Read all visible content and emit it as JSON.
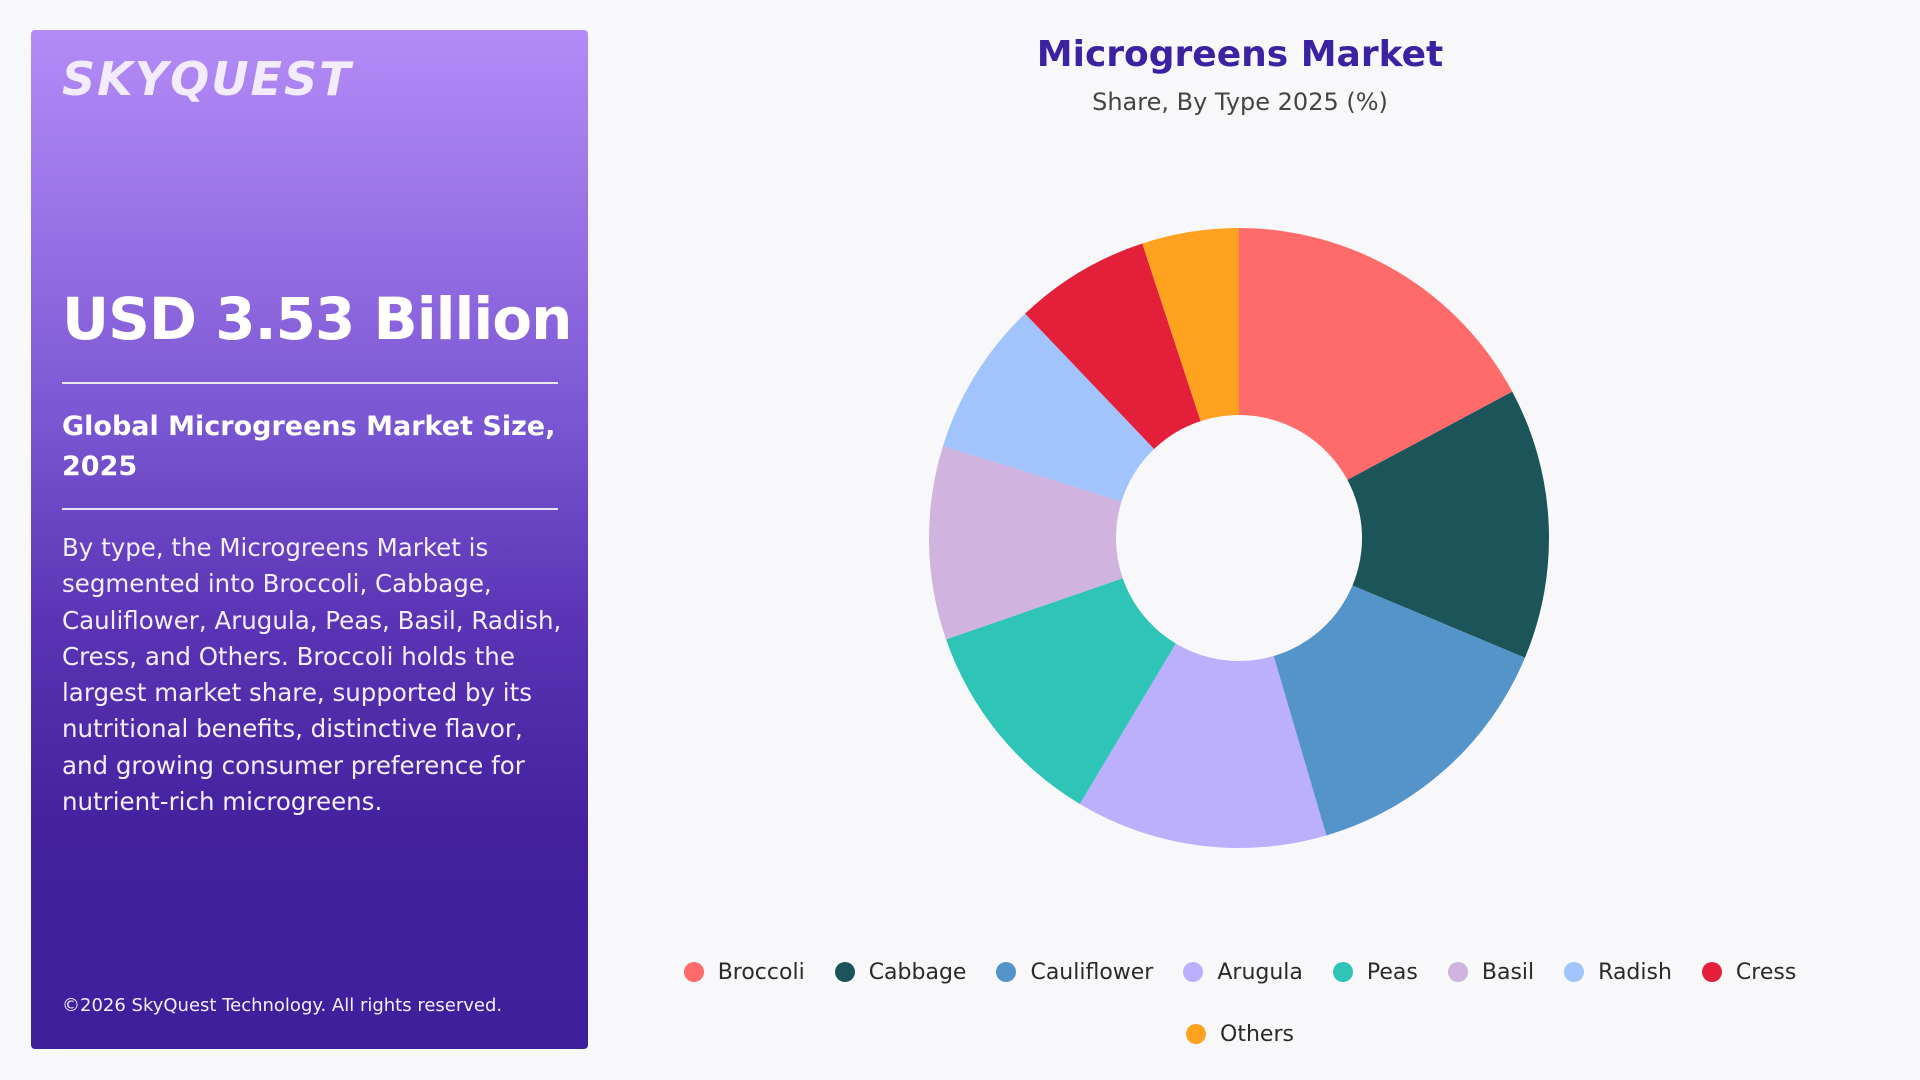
{
  "brand": {
    "logo_text": "SKYQUEST"
  },
  "panel": {
    "headline": "USD 3.53 Billion",
    "subhead": "Global Microgreens Market Size, 2025",
    "description": "By type, the Microgreens Market is segmented into Broccoli, Cabbage, Cauliflower, Arugula, Peas, Basil, Radish, Cress, and Others. Broccoli holds the largest market share, supported by its nutritional benefits, distinctive flavor, and growing consumer preference for nutrient-rich microgreens.",
    "copyright": "©2026 SkyQuest Technology. All rights reserved."
  },
  "chart_data": {
    "type": "pie",
    "variant": "donut",
    "title": "Microgreens Market",
    "subtitle": "Share, By Type 2025 (%)",
    "categories": [
      "Broccoli",
      "Cabbage",
      "Cauliflower",
      "Arugula",
      "Peas",
      "Basil",
      "Radish",
      "Cress",
      "Others"
    ],
    "values": [
      17,
      14,
      14,
      13,
      11,
      10,
      8,
      7,
      5
    ],
    "colors": [
      "#ff6b6b",
      "#1b555a",
      "#5494c8",
      "#bcb0fc",
      "#2ec4b6",
      "#d0b3de",
      "#a1c4fd",
      "#e31f3a",
      "#ffa21f"
    ],
    "legend_position": "bottom",
    "start_angle_deg": 0,
    "direction": "clockwise"
  }
}
